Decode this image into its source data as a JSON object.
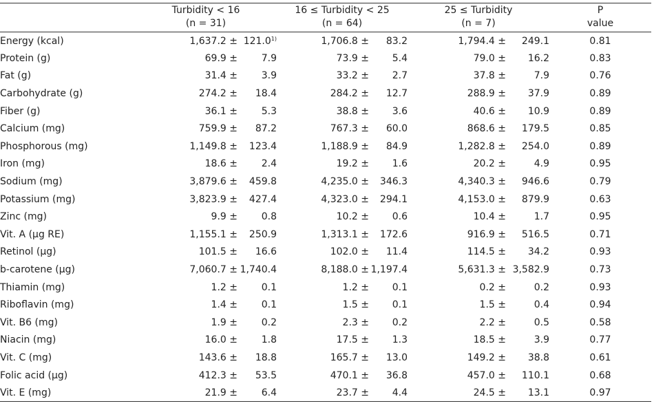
{
  "header": {
    "groups": [
      {
        "line1": "Turbidity < 16",
        "line2": "(n = 31)"
      },
      {
        "line1": "16 ≤ Turbidity < 25",
        "line2": "(n = 64)"
      },
      {
        "line1": "25 ≤ Turbidity",
        "line2": "(n = 7)"
      }
    ],
    "p_line1": "P",
    "p_line2": "value"
  },
  "rows": [
    {
      "label": "Energy (kcal)",
      "values": [
        [
          "1,637.2 ±",
          "121.0"
        ],
        [
          "1,706.8 ±",
          "83.2"
        ],
        [
          "1,794.4 ±",
          "249.1"
        ]
      ],
      "p": "0.81",
      "footnote": "1)"
    },
    {
      "label": "Protein (g)",
      "values": [
        [
          "69.9 ±",
          "7.9"
        ],
        [
          "73.9 ±",
          "5.4"
        ],
        [
          "79.0 ±",
          "16.2"
        ]
      ],
      "p": "0.83"
    },
    {
      "label": "Fat (g)",
      "values": [
        [
          "31.4 ±",
          "3.9"
        ],
        [
          "33.2 ±",
          "2.7"
        ],
        [
          "37.8 ±",
          "7.9"
        ]
      ],
      "p": "0.76"
    },
    {
      "label": "Carbohydrate (g)",
      "values": [
        [
          "274.2 ±",
          "18.4"
        ],
        [
          "284.2 ±",
          "12.7"
        ],
        [
          "288.9 ±",
          "37.9"
        ]
      ],
      "p": "0.89"
    },
    {
      "label": "Fiber (g)",
      "values": [
        [
          "36.1 ±",
          "5.3"
        ],
        [
          "38.8 ±",
          "3.6"
        ],
        [
          "40.6 ±",
          "10.9"
        ]
      ],
      "p": "0.89"
    },
    {
      "label": "Calcium (mg)",
      "values": [
        [
          "759.9 ±",
          "87.2"
        ],
        [
          "767.3 ±",
          "60.0"
        ],
        [
          "868.6 ±",
          "179.5"
        ]
      ],
      "p": "0.85"
    },
    {
      "label": "Phosphorous (mg)",
      "values": [
        [
          "1,149.8 ±",
          "123.4"
        ],
        [
          "1,188.9 ±",
          "84.9"
        ],
        [
          "1,282.8 ±",
          "254.0"
        ]
      ],
      "p": "0.89"
    },
    {
      "label": "Iron (mg)",
      "values": [
        [
          "18.6 ±",
          "2.4"
        ],
        [
          "19.2 ±",
          "1.6"
        ],
        [
          "20.2 ±",
          "4.9"
        ]
      ],
      "p": "0.95"
    },
    {
      "label": "Sodium (mg)",
      "values": [
        [
          "3,879.6 ±",
          "459.8"
        ],
        [
          "4,235.0 ±",
          "346.3"
        ],
        [
          "4,340.3 ±",
          "946.6"
        ]
      ],
      "p": "0.79"
    },
    {
      "label": "Potassium (mg)",
      "values": [
        [
          "3,823.9 ±",
          "427.4"
        ],
        [
          "4,323.0 ±",
          "294.1"
        ],
        [
          "4,153.0 ±",
          "879.9"
        ]
      ],
      "p": "0.63"
    },
    {
      "label": "Zinc (mg)",
      "values": [
        [
          "9.9 ±",
          "0.8"
        ],
        [
          "10.2 ±",
          "0.6"
        ],
        [
          "10.4 ±",
          "1.7"
        ]
      ],
      "p": "0.95"
    },
    {
      "label": "Vit. A (μg RE)",
      "values": [
        [
          "1,155.1 ±",
          "250.9"
        ],
        [
          "1,313.1 ±",
          "172.6"
        ],
        [
          "916.9 ±",
          "516.5"
        ]
      ],
      "p": "0.71"
    },
    {
      "label": "Retinol (μg)",
      "values": [
        [
          "101.5 ±",
          "16.6"
        ],
        [
          "102.0 ±",
          "11.4"
        ],
        [
          "114.5 ±",
          "34.2"
        ]
      ],
      "p": "0.93"
    },
    {
      "label": "b-carotene (μg)",
      "values": [
        [
          "7,060.7 ±",
          "1,740.4"
        ],
        [
          "8,188.0 ±",
          "1,197.4"
        ],
        [
          "5,631.3 ±",
          "3,582.9"
        ]
      ],
      "p": "0.73"
    },
    {
      "label": "Thiamin (mg)",
      "values": [
        [
          "1.2 ±",
          "0.1"
        ],
        [
          "1.2 ±",
          "0.1"
        ],
        [
          "0.2 ±",
          "0.2"
        ]
      ],
      "p": "0.93"
    },
    {
      "label": "Riboflavin (mg)",
      "values": [
        [
          "1.4 ±",
          "0.1"
        ],
        [
          "1.5 ±",
          "0.1"
        ],
        [
          "1.5 ±",
          "0.4"
        ]
      ],
      "p": "0.94"
    },
    {
      "label": "Vit. B6 (mg)",
      "values": [
        [
          "1.9 ±",
          "0.2"
        ],
        [
          "2.3 ±",
          "0.2"
        ],
        [
          "2.2 ±",
          "0.5"
        ]
      ],
      "p": "0.58"
    },
    {
      "label": "Niacin (mg)",
      "values": [
        [
          "16.0 ±",
          "1.8"
        ],
        [
          "17.5 ±",
          "1.3"
        ],
        [
          "18.5 ±",
          "3.9"
        ]
      ],
      "p": "0.77"
    },
    {
      "label": "Vit. C (mg)",
      "values": [
        [
          "143.6 ±",
          "18.8"
        ],
        [
          "165.7 ±",
          "13.0"
        ],
        [
          "149.2 ±",
          "38.8"
        ]
      ],
      "p": "0.61"
    },
    {
      "label": "Folic acid (μg)",
      "values": [
        [
          "412.3 ±",
          "53.5"
        ],
        [
          "470.1 ±",
          "36.8"
        ],
        [
          "457.0 ±",
          "110.1"
        ]
      ],
      "p": "0.68"
    },
    {
      "label": "Vit. E (mg)",
      "values": [
        [
          "21.9 ±",
          "6.4"
        ],
        [
          "23.7 ±",
          "4.4"
        ],
        [
          "24.5 ±",
          "13.1"
        ]
      ],
      "p": "0.97"
    }
  ]
}
